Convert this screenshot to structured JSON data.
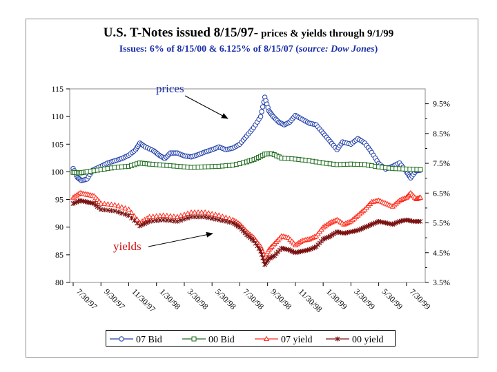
{
  "title": {
    "main": "U.S. T-Notes issued 8/15/97-",
    "sub": "prices & yields through 9/1/99",
    "issues_prefix": "Issues: 6% of 8/15/00 & 6.125% of 8/15/07 (",
    "source": "source: Dow Jones",
    "issues_suffix": ")"
  },
  "colors": {
    "bid07": "#1f3fa8",
    "bid00": "#1e6b1e",
    "yield07": "#ff2a1a",
    "yield00": "#7a1010",
    "prices_label": "#1b2fa8",
    "yields_label": "#d01010"
  },
  "annotations": {
    "prices": "prices",
    "yields": "yields"
  },
  "chart_data": {
    "type": "line",
    "title": "U.S. T-Notes issued 8/15/97- prices & yields through 9/1/99",
    "xlabel": "",
    "ylabel": "",
    "x_range": [
      0,
      25.1
    ],
    "ylim": [
      80,
      115
    ],
    "y2lim": [
      3.5,
      10.0
    ],
    "left_ticks": [
      "80",
      "85",
      "90",
      "95",
      "100",
      "105",
      "110",
      "115"
    ],
    "right_ticks": [
      "3.5%",
      "4.5%",
      "5.5%",
      "6.5%",
      "7.5%",
      "8.5%",
      "9.5%"
    ],
    "x_ticks": [
      "7/30/97",
      "9/30/97",
      "11/30/97",
      "1/30/98",
      "3/30/98",
      "5/30/98",
      "7/30/98",
      "9/30/98",
      "11/30/98",
      "1/30/99",
      "3/30/99",
      "5/30/99",
      "7/30/99"
    ],
    "x_tick_pos": [
      0,
      2,
      4,
      6,
      8,
      10,
      12,
      14,
      16,
      18,
      20,
      22,
      24
    ],
    "legend_position": "bottom",
    "series": [
      {
        "name": "07 Bid",
        "axis": "left",
        "marker": "circle",
        "points": [
          [
            0,
            100.6
          ],
          [
            0.3,
            99.0
          ],
          [
            0.6,
            98.4
          ],
          [
            1.0,
            98.7
          ],
          [
            1.4,
            100.3
          ],
          [
            2.0,
            101.0
          ],
          [
            2.5,
            101.6
          ],
          [
            3.0,
            102.0
          ],
          [
            3.5,
            102.4
          ],
          [
            4.0,
            103.0
          ],
          [
            4.5,
            104.0
          ],
          [
            4.8,
            105.2
          ],
          [
            5.2,
            104.5
          ],
          [
            5.8,
            103.8
          ],
          [
            6.2,
            103.0
          ],
          [
            6.6,
            102.4
          ],
          [
            7.0,
            103.4
          ],
          [
            7.5,
            103.4
          ],
          [
            8.0,
            102.9
          ],
          [
            8.5,
            102.7
          ],
          [
            9.0,
            103.1
          ],
          [
            9.5,
            103.6
          ],
          [
            10.0,
            104.0
          ],
          [
            10.5,
            104.5
          ],
          [
            11.0,
            104.0
          ],
          [
            11.5,
            104.3
          ],
          [
            12.0,
            105.0
          ],
          [
            12.5,
            106.5
          ],
          [
            13.0,
            108.0
          ],
          [
            13.5,
            110.0
          ],
          [
            13.8,
            113.5
          ],
          [
            14.1,
            111.0
          ],
          [
            14.4,
            110.0
          ],
          [
            14.8,
            109.0
          ],
          [
            15.2,
            108.5
          ],
          [
            15.6,
            109.0
          ],
          [
            16.0,
            110.2
          ],
          [
            16.5,
            109.5
          ],
          [
            17.0,
            108.8
          ],
          [
            17.5,
            108.5
          ],
          [
            18.0,
            107.0
          ],
          [
            18.5,
            105.5
          ],
          [
            19.0,
            104.0
          ],
          [
            19.4,
            105.4
          ],
          [
            20.0,
            105.0
          ],
          [
            20.5,
            106.0
          ],
          [
            21.0,
            105.2
          ],
          [
            21.5,
            103.5
          ],
          [
            22.0,
            101.5
          ],
          [
            22.5,
            100.5
          ],
          [
            23.0,
            101.0
          ],
          [
            23.5,
            101.6
          ],
          [
            24.0,
            100.0
          ],
          [
            24.3,
            98.9
          ],
          [
            24.7,
            100.2
          ],
          [
            25.0,
            100.3
          ]
        ]
      },
      {
        "name": "00 Bid",
        "axis": "left",
        "marker": "square",
        "points": [
          [
            0,
            99.9
          ],
          [
            0.5,
            99.8
          ],
          [
            1.0,
            100.0
          ],
          [
            2.0,
            100.4
          ],
          [
            3.0,
            100.8
          ],
          [
            4.0,
            101.0
          ],
          [
            4.8,
            101.6
          ],
          [
            5.5,
            101.4
          ],
          [
            6.5,
            101.2
          ],
          [
            7.5,
            101.0
          ],
          [
            8.5,
            100.8
          ],
          [
            9.5,
            100.9
          ],
          [
            10.5,
            101.0
          ],
          [
            11.5,
            101.2
          ],
          [
            12.5,
            101.8
          ],
          [
            13.2,
            102.4
          ],
          [
            13.8,
            103.2
          ],
          [
            14.3,
            103.3
          ],
          [
            15.0,
            102.5
          ],
          [
            16.0,
            102.3
          ],
          [
            17.0,
            102.0
          ],
          [
            18.0,
            101.6
          ],
          [
            19.0,
            101.3
          ],
          [
            20.0,
            101.4
          ],
          [
            21.0,
            101.3
          ],
          [
            22.0,
            100.9
          ],
          [
            23.0,
            100.6
          ],
          [
            24.0,
            100.5
          ],
          [
            25.0,
            100.4
          ]
        ]
      },
      {
        "name": "07 yield",
        "axis": "right",
        "marker": "triangle",
        "points": [
          [
            0,
            6.35
          ],
          [
            0.5,
            6.5
          ],
          [
            1.0,
            6.45
          ],
          [
            1.5,
            6.4
          ],
          [
            2.0,
            6.15
          ],
          [
            3.0,
            6.1
          ],
          [
            4.0,
            5.95
          ],
          [
            4.8,
            5.5
          ],
          [
            5.5,
            5.7
          ],
          [
            6.5,
            5.75
          ],
          [
            7.5,
            5.7
          ],
          [
            8.5,
            5.85
          ],
          [
            9.5,
            5.85
          ],
          [
            10.5,
            5.75
          ],
          [
            11.5,
            5.6
          ],
          [
            12.0,
            5.45
          ],
          [
            12.5,
            5.2
          ],
          [
            13.0,
            5.0
          ],
          [
            13.5,
            4.7
          ],
          [
            13.8,
            4.35
          ],
          [
            14.1,
            4.6
          ],
          [
            14.5,
            4.8
          ],
          [
            15.0,
            5.05
          ],
          [
            15.5,
            5.0
          ],
          [
            16.0,
            4.75
          ],
          [
            16.5,
            4.9
          ],
          [
            17.0,
            4.95
          ],
          [
            17.5,
            5.05
          ],
          [
            18.0,
            5.35
          ],
          [
            18.5,
            5.5
          ],
          [
            19.0,
            5.6
          ],
          [
            19.5,
            5.45
          ],
          [
            20.0,
            5.55
          ],
          [
            20.5,
            5.75
          ],
          [
            21.0,
            5.95
          ],
          [
            21.5,
            6.2
          ],
          [
            22.0,
            6.25
          ],
          [
            22.5,
            6.15
          ],
          [
            23.0,
            6.05
          ],
          [
            23.5,
            6.25
          ],
          [
            24.0,
            6.35
          ],
          [
            24.3,
            6.5
          ],
          [
            24.7,
            6.3
          ],
          [
            25.0,
            6.35
          ]
        ]
      },
      {
        "name": "00 yield",
        "axis": "right",
        "marker": "asterisk",
        "points": [
          [
            0,
            6.15
          ],
          [
            0.5,
            6.25
          ],
          [
            1.0,
            6.2
          ],
          [
            1.5,
            6.15
          ],
          [
            2.0,
            5.95
          ],
          [
            3.0,
            5.9
          ],
          [
            4.0,
            5.75
          ],
          [
            4.8,
            5.4
          ],
          [
            5.5,
            5.55
          ],
          [
            6.5,
            5.6
          ],
          [
            7.5,
            5.55
          ],
          [
            8.5,
            5.7
          ],
          [
            9.5,
            5.7
          ],
          [
            10.5,
            5.6
          ],
          [
            11.5,
            5.5
          ],
          [
            12.0,
            5.35
          ],
          [
            12.5,
            5.1
          ],
          [
            13.0,
            4.9
          ],
          [
            13.5,
            4.55
          ],
          [
            13.8,
            4.1
          ],
          [
            14.1,
            4.3
          ],
          [
            14.5,
            4.4
          ],
          [
            15.0,
            4.65
          ],
          [
            15.5,
            4.6
          ],
          [
            16.0,
            4.5
          ],
          [
            16.5,
            4.55
          ],
          [
            17.0,
            4.6
          ],
          [
            17.5,
            4.7
          ],
          [
            18.0,
            4.95
          ],
          [
            18.5,
            5.05
          ],
          [
            19.0,
            5.2
          ],
          [
            19.5,
            5.15
          ],
          [
            20.0,
            5.2
          ],
          [
            20.5,
            5.25
          ],
          [
            21.0,
            5.35
          ],
          [
            21.5,
            5.45
          ],
          [
            22.0,
            5.55
          ],
          [
            22.5,
            5.5
          ],
          [
            23.0,
            5.45
          ],
          [
            23.5,
            5.55
          ],
          [
            24.0,
            5.6
          ],
          [
            24.5,
            5.55
          ],
          [
            25.0,
            5.55
          ]
        ]
      }
    ]
  }
}
